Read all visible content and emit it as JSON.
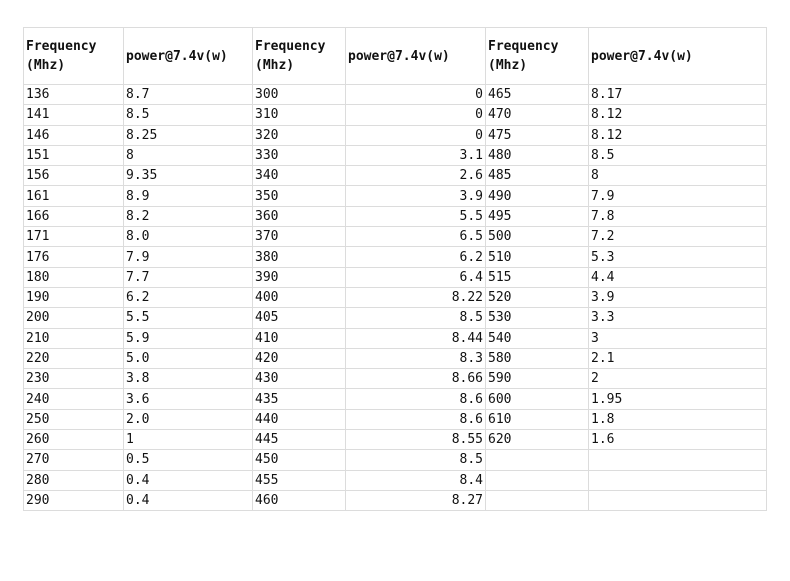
{
  "headers": [
    "Frequency (Mhz)",
    "power@7.4v(w)",
    "Frequency (Mhz)",
    "power@7.4v(w)",
    "Frequency (Mhz)",
    "power@7.4v(w)"
  ],
  "rows": [
    [
      "136",
      "8.7",
      "300",
      "0",
      "465",
      "8.17"
    ],
    [
      "141",
      "8.5",
      "310",
      "0",
      "470",
      "8.12"
    ],
    [
      "146",
      "8.25",
      "320",
      "0",
      "475",
      "8.12"
    ],
    [
      "151",
      "8",
      "330",
      "3.1",
      "480",
      "8.5"
    ],
    [
      "156",
      "9.35",
      "340",
      "2.6",
      "485",
      "8"
    ],
    [
      "161",
      "8.9",
      "350",
      "3.9",
      "490",
      "7.9"
    ],
    [
      "166",
      "8.2",
      "360",
      "5.5",
      "495",
      "7.8"
    ],
    [
      "171",
      "8.0",
      "370",
      "6.5",
      "500",
      "7.2"
    ],
    [
      "176",
      "7.9",
      "380",
      "6.2",
      "510",
      "5.3"
    ],
    [
      "180",
      "7.7",
      "390",
      "6.4",
      "515",
      "4.4"
    ],
    [
      "190",
      "6.2",
      "400",
      "8.22",
      "520",
      "3.9"
    ],
    [
      "200",
      "5.5",
      "405",
      "8.5",
      "530",
      "3.3"
    ],
    [
      "210",
      "5.9",
      "410",
      "8.44",
      "540",
      "3"
    ],
    [
      "220",
      "5.0",
      "420",
      "8.3",
      "580",
      "2.1"
    ],
    [
      "230",
      "3.8",
      "430",
      "8.66",
      "590",
      "2"
    ],
    [
      "240",
      "3.6",
      "435",
      "8.6",
      "600",
      "1.95"
    ],
    [
      "250",
      "2.0",
      "440",
      "8.6",
      "610",
      "1.8"
    ],
    [
      "260",
      "1",
      "445",
      "8.55",
      "620",
      "1.6"
    ],
    [
      "270",
      "0.5",
      "450",
      "8.5",
      "",
      ""
    ],
    [
      "280",
      "0.4",
      "455",
      "8.4",
      "",
      ""
    ],
    [
      "290",
      "0.4",
      "460",
      "8.27",
      "",
      ""
    ]
  ]
}
